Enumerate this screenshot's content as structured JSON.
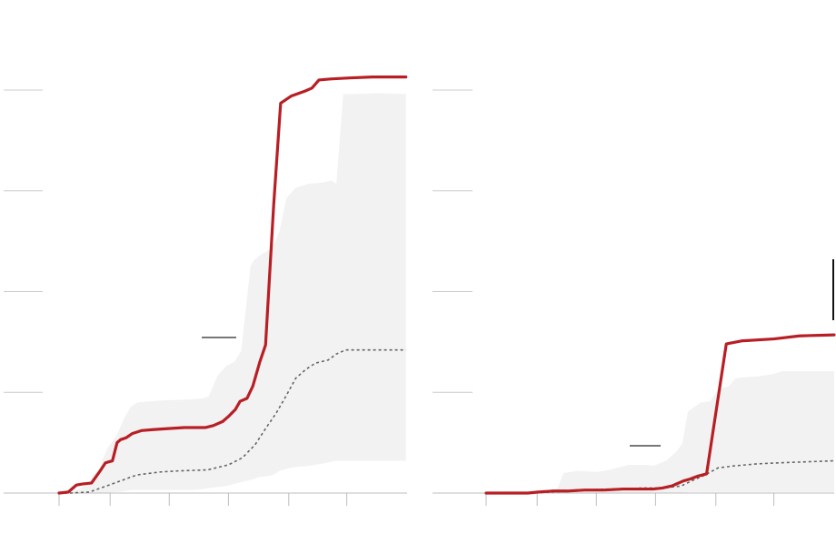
{
  "colors": {
    "highlight": "#b81f25",
    "band": "#f2f2f2",
    "median": "#666666",
    "grid": "#cccccc"
  },
  "chart_data": [
    {
      "type": "line",
      "grid": true,
      "xlim": [
        0,
        30
      ],
      "ylim": [
        0,
        4
      ],
      "x_ticks": [
        0,
        4.4,
        9.5,
        14.6,
        19.8,
        24.8
      ],
      "y_gridlines": [
        0,
        1,
        2,
        3,
        4
      ],
      "series": [
        {
          "role": "highlight",
          "x": [
            0,
            0.8,
            1.5,
            2,
            2.8,
            3.6,
            4,
            4.6,
            5,
            5.3,
            5.8,
            6.3,
            7.1,
            8.1,
            9.4,
            10.8,
            12.6,
            13.3,
            14.1,
            14.6,
            15.2,
            15.6,
            16.2,
            16.7,
            17.3,
            17.8,
            18.5,
            19.1,
            20,
            21.2,
            21.8,
            22.4,
            23.4,
            25,
            27,
            29.9
          ],
          "y": [
            0,
            0.01,
            0.08,
            0.09,
            0.1,
            0.23,
            0.3,
            0.32,
            0.5,
            0.53,
            0.55,
            0.59,
            0.62,
            0.63,
            0.64,
            0.65,
            0.65,
            0.67,
            0.71,
            0.76,
            0.83,
            0.91,
            0.94,
            1.06,
            1.3,
            1.47,
            2.86,
            3.87,
            3.94,
            3.99,
            4.02,
            4.1,
            4.11,
            4.12,
            4.13,
            4.13
          ]
        },
        {
          "role": "median",
          "x": [
            0,
            1,
            2.6,
            3.6,
            4.8,
            6.7,
            8.8,
            10.3,
            12.8,
            14.6,
            15.8,
            16.9,
            17.8,
            18.7,
            19.6,
            20.4,
            21.3,
            22.1,
            23.2,
            23.9,
            24.7,
            27,
            29.9
          ],
          "y": [
            0,
            0,
            0.01,
            0.05,
            0.1,
            0.18,
            0.21,
            0.22,
            0.23,
            0.28,
            0.35,
            0.48,
            0.64,
            0.79,
            0.97,
            1.14,
            1.23,
            1.29,
            1.32,
            1.38,
            1.42,
            1.42,
            1.42
          ]
        }
      ],
      "band": {
        "x": [
          0,
          1,
          1.7,
          2.6,
          3,
          3.4,
          3.8,
          4.2,
          4.6,
          5,
          5.6,
          6.2,
          6.8,
          7.8,
          9.1,
          11.5,
          12.4,
          12.9,
          13.7,
          14.4,
          15.1,
          15.7,
          16.5,
          16.8,
          17.3,
          18.2,
          18.6,
          19,
          19.6,
          20.4,
          21.5,
          22.6,
          23.5,
          23.9,
          24.5,
          25.5,
          27.6,
          29.9
        ],
        "lower": [
          0,
          0,
          0,
          0,
          0,
          0,
          0,
          0,
          0.01,
          0.01,
          0.02,
          0.03,
          0.03,
          0.03,
          0.03,
          0.03,
          0.04,
          0.05,
          0.06,
          0.07,
          0.09,
          0.11,
          0.13,
          0.14,
          0.16,
          0.17,
          0.19,
          0.22,
          0.24,
          0.26,
          0.27,
          0.29,
          0.31,
          0.32,
          0.32,
          0.32,
          0.32,
          0.32
        ],
        "upper": [
          0,
          0.01,
          0.04,
          0.1,
          0.19,
          0.22,
          0.35,
          0.45,
          0.51,
          0.58,
          0.74,
          0.86,
          0.9,
          0.91,
          0.92,
          0.93,
          0.94,
          0.96,
          1.17,
          1.26,
          1.3,
          1.41,
          2.25,
          2.31,
          2.36,
          2.42,
          2.49,
          2.6,
          2.93,
          3.03,
          3.07,
          3.08,
          3.1,
          3.07,
          3.96,
          3.96,
          3.97,
          3.96
        ]
      }
    },
    {
      "type": "line",
      "grid": true,
      "xlim": [
        0,
        30
      ],
      "ylim": [
        0,
        4
      ],
      "x_ticks": [
        0,
        4.4,
        9.5,
        14.6,
        19.8,
        24.8
      ],
      "y_gridlines": [
        0,
        1,
        2,
        3,
        4
      ],
      "series": [
        {
          "role": "highlight",
          "x": [
            0,
            1.8,
            3.6,
            4.5,
            5.7,
            7,
            8.5,
            10.2,
            11.8,
            13.1,
            14.4,
            15.2,
            16,
            17,
            17.6,
            18.3,
            19,
            20.7,
            22,
            24.8,
            27,
            30
          ],
          "y": [
            0,
            0,
            0,
            0.01,
            0.02,
            0.02,
            0.03,
            0.03,
            0.04,
            0.04,
            0.04,
            0.05,
            0.07,
            0.12,
            0.14,
            0.17,
            0.19,
            1.48,
            1.51,
            1.53,
            1.56,
            1.57
          ]
        },
        {
          "role": "median",
          "x": [
            0,
            3.6,
            5.7,
            8.2,
            10.7,
            12.3,
            13.4,
            15.3,
            16.8,
            17.7,
            18.7,
            20,
            21.4,
            22.4,
            23.4,
            25.2,
            30
          ],
          "y": [
            0,
            0,
            0.01,
            0.03,
            0.04,
            0.04,
            0.05,
            0.05,
            0.07,
            0.12,
            0.17,
            0.25,
            0.27,
            0.28,
            0.29,
            0.3,
            0.32
          ]
        }
      ],
      "band": {
        "x": [
          0,
          3.6,
          5,
          6.1,
          6.7,
          7.9,
          9.6,
          10.6,
          12.3,
          13.8,
          14.4,
          15.5,
          16.4,
          16.9,
          17.4,
          18.5,
          19.3,
          20,
          20.9,
          21.5,
          22.4,
          23.6,
          24.7,
          25.5,
          26.4,
          30
        ],
        "lower": [
          0,
          0,
          0,
          0,
          0,
          0,
          0,
          0,
          0,
          0,
          0,
          0,
          0,
          0,
          0.01,
          0.01,
          0.01,
          0.01,
          0.01,
          0.01,
          0.01,
          0.01,
          0.01,
          0.01,
          0.01,
          0.01
        ],
        "upper": [
          0,
          0,
          0.02,
          0.04,
          0.2,
          0.22,
          0.21,
          0.23,
          0.28,
          0.28,
          0.27,
          0.32,
          0.41,
          0.49,
          0.81,
          0.9,
          0.91,
          1.03,
          1.06,
          1.14,
          1.15,
          1.16,
          1.18,
          1.21,
          1.21,
          1.21
        ]
      }
    }
  ]
}
